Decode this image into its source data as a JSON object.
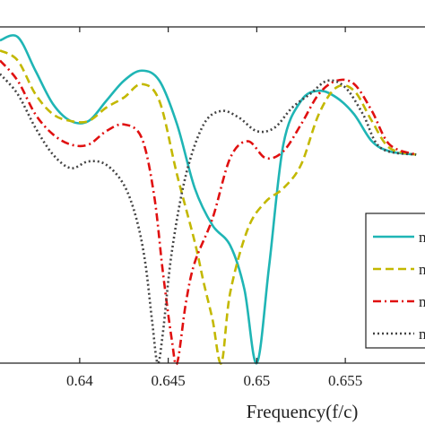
{
  "chart_data": {
    "type": "line",
    "title": "",
    "xlabel": "Frequency(f/c)",
    "ylabel": "",
    "xlim": [
      0.6355,
      0.6595
    ],
    "ylim": [
      0,
      1
    ],
    "grid": false,
    "legend_position": "right",
    "x_ticks": [
      0.64,
      0.645,
      0.65,
      0.655
    ],
    "x_tick_labels": [
      "0.64",
      "0.645",
      "0.65",
      "0.655"
    ],
    "series": [
      {
        "name": "m",
        "color": "#1fb5b5",
        "dash": "solid",
        "x": [
          0.6355,
          0.6365,
          0.6375,
          0.6385,
          0.6395,
          0.6405,
          0.6415,
          0.6425,
          0.6435,
          0.6445,
          0.6455,
          0.6465,
          0.6475,
          0.6485,
          0.6493,
          0.65,
          0.6507,
          0.6515,
          0.6525,
          0.6535,
          0.6545,
          0.6555,
          0.6565,
          0.6575,
          0.659
        ],
        "y": [
          0.96,
          0.97,
          0.87,
          0.77,
          0.72,
          0.72,
          0.78,
          0.84,
          0.87,
          0.84,
          0.71,
          0.52,
          0.41,
          0.35,
          0.22,
          0.0,
          0.29,
          0.65,
          0.78,
          0.81,
          0.79,
          0.74,
          0.66,
          0.63,
          0.62
        ]
      },
      {
        "name": "m",
        "color": "#c3b800",
        "dash": "dashed",
        "x": [
          0.6355,
          0.6365,
          0.6375,
          0.6385,
          0.6395,
          0.6405,
          0.6415,
          0.6425,
          0.6435,
          0.6445,
          0.6455,
          0.6465,
          0.647,
          0.6475,
          0.648,
          0.6485,
          0.6495,
          0.6505,
          0.6515,
          0.6525,
          0.6535,
          0.6545,
          0.6555,
          0.6565,
          0.6575,
          0.659
        ],
        "y": [
          0.93,
          0.9,
          0.8,
          0.74,
          0.72,
          0.72,
          0.76,
          0.79,
          0.83,
          0.78,
          0.56,
          0.36,
          0.24,
          0.13,
          0.0,
          0.21,
          0.4,
          0.48,
          0.52,
          0.59,
          0.74,
          0.82,
          0.81,
          0.72,
          0.64,
          0.62
        ]
      },
      {
        "name": "m",
        "color": "#e01010",
        "dash": "dashdot",
        "x": [
          0.6355,
          0.6365,
          0.6375,
          0.6385,
          0.6395,
          0.6405,
          0.6415,
          0.6425,
          0.6435,
          0.6442,
          0.6447,
          0.6452,
          0.6455,
          0.646,
          0.6465,
          0.6475,
          0.6485,
          0.6495,
          0.6505,
          0.6515,
          0.6525,
          0.6535,
          0.6545,
          0.6555,
          0.6565,
          0.6575,
          0.659
        ],
        "y": [
          0.9,
          0.84,
          0.74,
          0.68,
          0.65,
          0.65,
          0.69,
          0.71,
          0.67,
          0.5,
          0.27,
          0.07,
          0.0,
          0.18,
          0.3,
          0.43,
          0.61,
          0.66,
          0.61,
          0.63,
          0.71,
          0.8,
          0.84,
          0.83,
          0.75,
          0.65,
          0.62
        ]
      },
      {
        "name": "m",
        "color": "#444444",
        "dash": "dotted",
        "x": [
          0.6355,
          0.6365,
          0.6375,
          0.6385,
          0.6395,
          0.6405,
          0.6415,
          0.6425,
          0.6432,
          0.6437,
          0.6441,
          0.6444,
          0.6447,
          0.6452,
          0.646,
          0.647,
          0.648,
          0.649,
          0.65,
          0.651,
          0.652,
          0.653,
          0.654,
          0.655,
          0.656,
          0.657,
          0.659
        ],
        "y": [
          0.86,
          0.8,
          0.7,
          0.62,
          0.58,
          0.6,
          0.59,
          0.53,
          0.43,
          0.3,
          0.12,
          0.0,
          0.09,
          0.33,
          0.56,
          0.71,
          0.75,
          0.73,
          0.69,
          0.7,
          0.76,
          0.8,
          0.84,
          0.82,
          0.74,
          0.64,
          0.62
        ]
      }
    ]
  }
}
